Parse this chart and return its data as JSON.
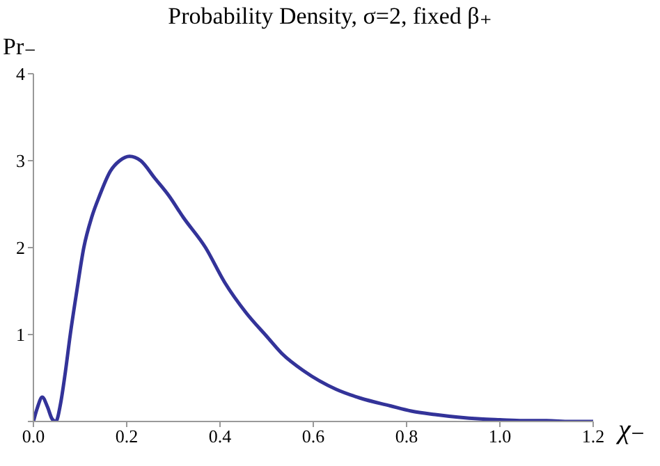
{
  "chart_data": {
    "type": "line",
    "title": "Probability Density, σ=2, fixed β₊",
    "xlabel": "χ₋",
    "ylabel": "Pr₋",
    "series": [
      {
        "color": "#333399",
        "x": [
          0,
          0.008,
          0.019,
          0.03,
          0.04,
          0.048,
          0.058,
          0.068,
          0.079,
          0.093,
          0.108,
          0.125,
          0.142,
          0.165,
          0.185,
          0.206,
          0.23,
          0.26,
          0.29,
          0.321,
          0.369,
          0.41,
          0.456,
          0.5,
          0.533,
          0.58,
          0.649,
          0.7,
          0.765,
          0.81,
          0.861,
          0.91,
          0.958,
          1.0,
          1.05,
          1.1,
          1.15,
          1.2
        ],
        "values": [
          0,
          0.15,
          0.28,
          0.17,
          0.03,
          0,
          0.2,
          0.55,
          1.0,
          1.5,
          2.0,
          2.35,
          2.6,
          2.88,
          3.0,
          3.05,
          3.0,
          2.8,
          2.6,
          2.35,
          2.0,
          1.6,
          1.25,
          0.98,
          0.78,
          0.58,
          0.37,
          0.27,
          0.18,
          0.12,
          0.08,
          0.05,
          0.03,
          0.02,
          0.01,
          0.01,
          0,
          0
        ]
      }
    ],
    "xlim": [
      0,
      1.2
    ],
    "xticks": [
      {
        "value": 0,
        "label": "0.0"
      },
      0.2,
      0.4,
      0.6,
      0.8,
      {
        "value": 1,
        "label": "1.0"
      },
      1.2
    ],
    "ylim": [
      0,
      4
    ],
    "yticks": [
      {
        "value": 0,
        "label": null
      },
      1,
      2,
      3,
      4
    ],
    "grid": false,
    "legend": false,
    "marker": "none",
    "line_style": "solid"
  }
}
